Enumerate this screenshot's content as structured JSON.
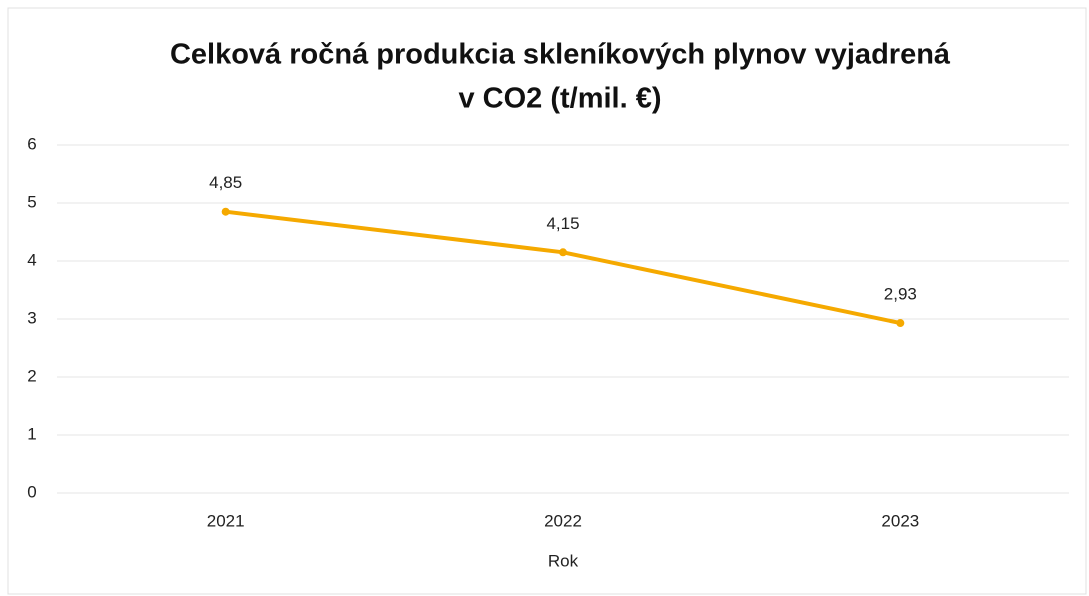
{
  "chart_data": {
    "type": "line",
    "title": [
      "Celková ročná produkcia skleníkových plynov vyjadrená",
      "v CO2 (t/mil. €)"
    ],
    "x_label": "Rok",
    "categories": [
      "2021",
      "2022",
      "2023"
    ],
    "values": [
      4.85,
      4.15,
      2.93
    ],
    "value_labels": [
      "4,85",
      "4,15",
      "2,93"
    ],
    "color": "#f5a900",
    "ylim": [
      0,
      6
    ],
    "yticks": [
      0,
      1,
      2,
      3,
      4,
      5,
      6
    ],
    "grid": true
  }
}
